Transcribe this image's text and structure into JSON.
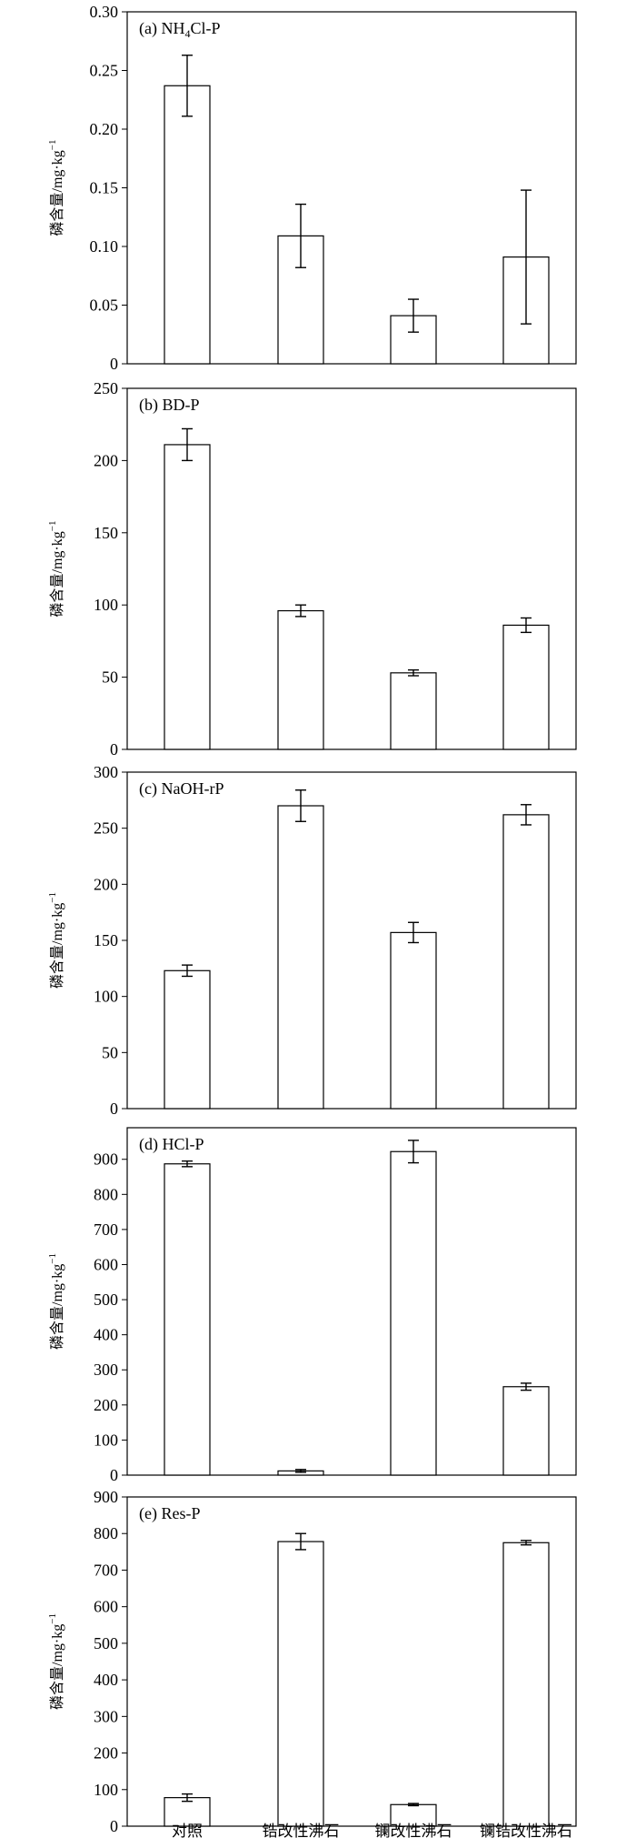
{
  "categories": [
    "对照",
    "锆改性沸石",
    "镧改性沸石",
    "镧锆改性沸石"
  ],
  "ylabel": "磷含量/mg·kg",
  "ylabel_sup": "−1",
  "chart_data": [
    {
      "type": "bar",
      "title": "(a) NH",
      "title_sub": "4",
      "title_tail": "Cl-P",
      "categories": [
        "对照",
        "锆改性沸石",
        "镧改性沸石",
        "镧锆改性沸石"
      ],
      "values": [
        0.237,
        0.109,
        0.041,
        0.091
      ],
      "errors": [
        0.026,
        0.027,
        0.014,
        0.057
      ],
      "ylim": [
        0,
        0.3
      ],
      "ticks": [
        "0",
        "0.05",
        "0.10",
        "0.15",
        "0.20",
        "0.25",
        "0.30"
      ]
    },
    {
      "type": "bar",
      "title": "(b) BD-P",
      "categories": [
        "对照",
        "锆改性沸石",
        "镧改性沸石",
        "镧锆改性沸石"
      ],
      "values": [
        211,
        96,
        53,
        86
      ],
      "errors": [
        11,
        4,
        2,
        5
      ],
      "ylim": [
        0,
        250
      ],
      "ticks": [
        "0",
        "50",
        "100",
        "150",
        "200",
        "250"
      ]
    },
    {
      "type": "bar",
      "title": "(c) NaOH-rP",
      "categories": [
        "对照",
        "锆改性沸石",
        "镧改性沸石",
        "镧锆改性沸石"
      ],
      "values": [
        123,
        270,
        157,
        262
      ],
      "errors": [
        5,
        14,
        9,
        9
      ],
      "ylim": [
        0,
        300
      ],
      "ticks": [
        "0",
        "50",
        "100",
        "150",
        "200",
        "250",
        "300"
      ]
    },
    {
      "type": "bar",
      "title": "(d) HCl-P",
      "categories": [
        "对照",
        "锆改性沸石",
        "镧改性沸石",
        "镧锆改性沸石"
      ],
      "values": [
        887,
        12,
        922,
        252
      ],
      "errors": [
        8,
        4,
        32,
        10
      ],
      "ylim": [
        0,
        990
      ],
      "ticks": [
        "0",
        "100",
        "200",
        "300",
        "400",
        "500",
        "600",
        "700",
        "800",
        "900"
      ]
    },
    {
      "type": "bar",
      "title": "(e) Res-P",
      "categories": [
        "对照",
        "锆改性沸石",
        "镧改性沸石",
        "镧锆改性沸石"
      ],
      "values": [
        78,
        778,
        59,
        775
      ],
      "errors": [
        10,
        22,
        3,
        6
      ],
      "ylim": [
        0,
        900
      ],
      "ticks": [
        "0",
        "100",
        "200",
        "300",
        "400",
        "500",
        "600",
        "700",
        "800",
        "900"
      ]
    }
  ]
}
